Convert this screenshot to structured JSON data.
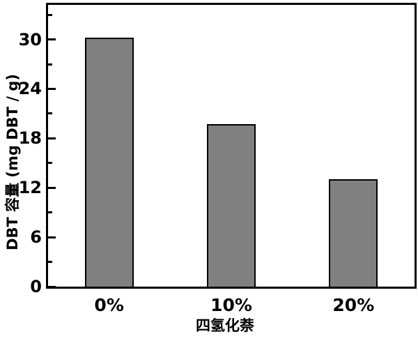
{
  "figure": {
    "background": "#ffffff",
    "frame_color": "#000000"
  },
  "chart_data": {
    "type": "bar",
    "categories": [
      "0%",
      "10%",
      "20%"
    ],
    "values": [
      30.2,
      19.7,
      13.0
    ],
    "xlabel": "四氢化萘",
    "ylabel": "DBT 容量 (mg DBT / g)",
    "ylim": [
      0,
      34.2
    ],
    "yticks_major": [
      0,
      6,
      12,
      18,
      24,
      30
    ],
    "yticks_minor": [
      3,
      9,
      15,
      21,
      27,
      33
    ],
    "bar_fill_color": "#808080",
    "bar_edge_color": "#000000",
    "tick_direction": "in",
    "grid": false,
    "legend": null
  }
}
